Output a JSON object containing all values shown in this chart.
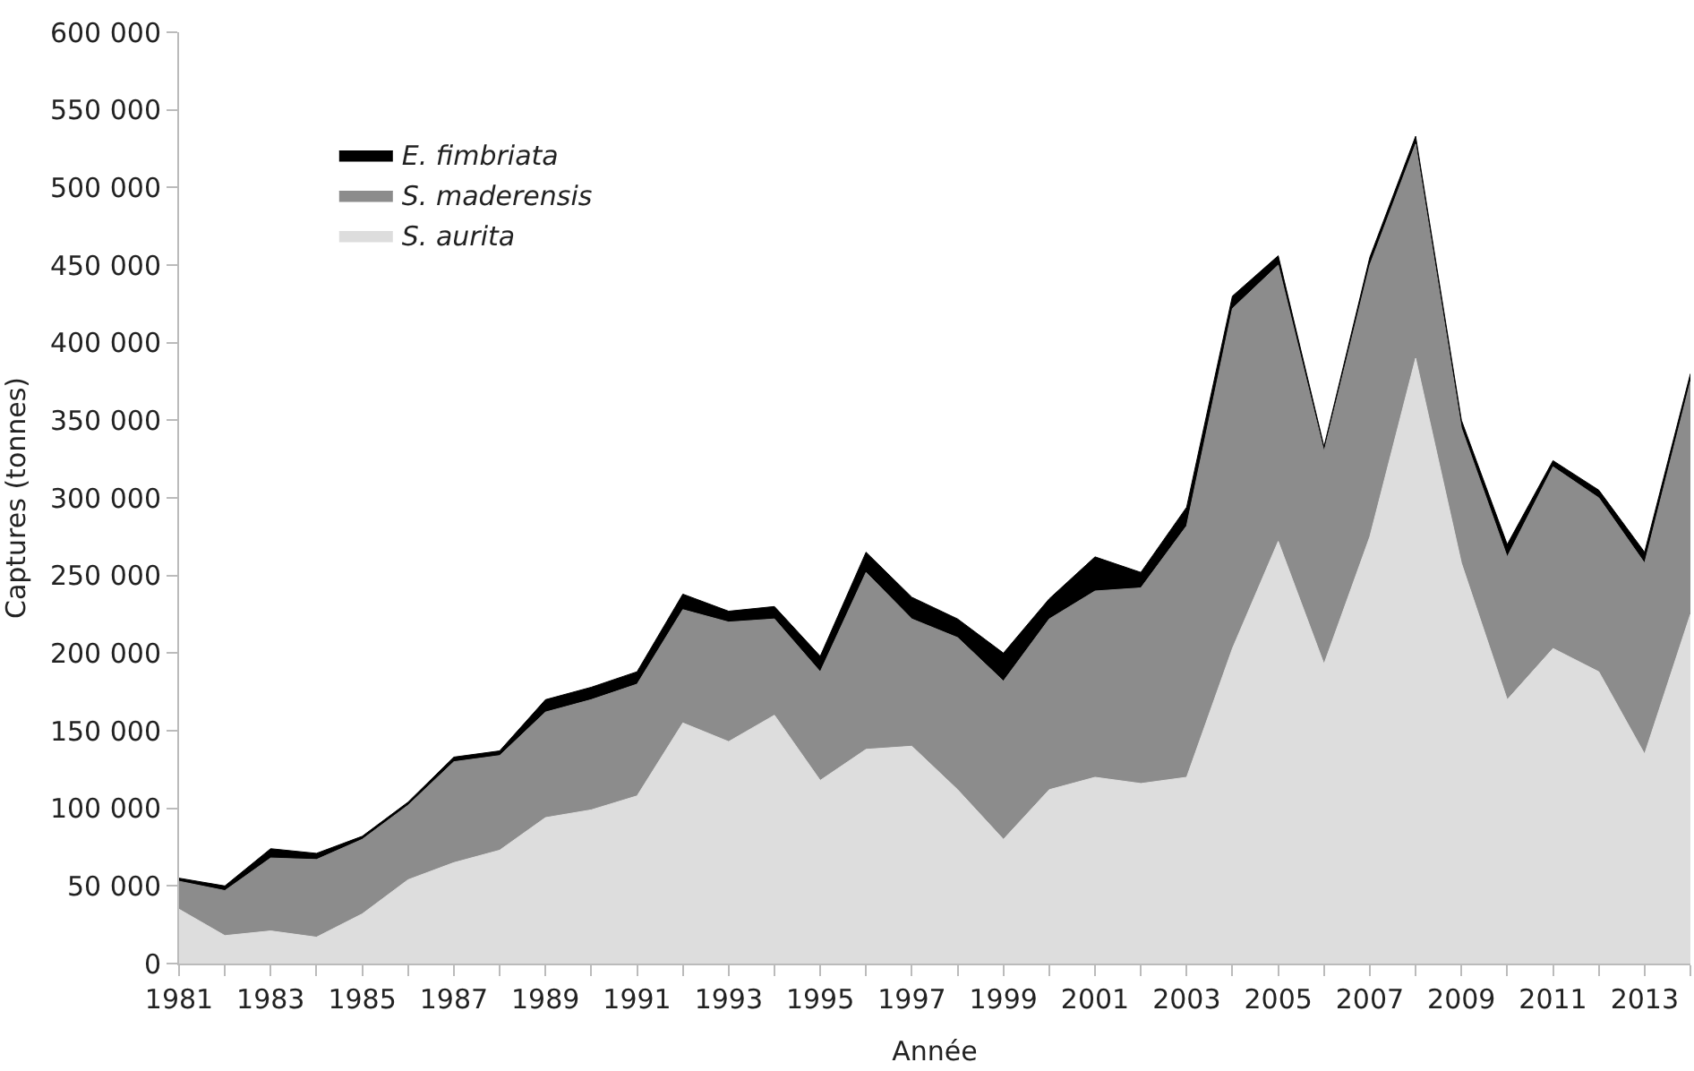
{
  "chart_data": {
    "type": "area",
    "stacked": true,
    "xlabel": "Année",
    "ylabel": "Captures (tonnes)",
    "x": [
      1981,
      1982,
      1983,
      1984,
      1985,
      1986,
      1987,
      1988,
      1989,
      1990,
      1991,
      1992,
      1993,
      1994,
      1995,
      1996,
      1997,
      1998,
      1999,
      2000,
      2001,
      2002,
      2003,
      2004,
      2005,
      2006,
      2007,
      2008,
      2009,
      2010,
      2011,
      2012,
      2013,
      2014
    ],
    "series": [
      {
        "name": "S. aurita",
        "color": "#dddddd",
        "values": [
          35000,
          18000,
          21000,
          17000,
          32000,
          54000,
          65000,
          73000,
          94000,
          99000,
          108000,
          155000,
          143000,
          160000,
          118000,
          138000,
          140000,
          112000,
          80000,
          112000,
          120000,
          116000,
          120000,
          203000,
          272000,
          193000,
          275000,
          390000,
          258000,
          170000,
          203000,
          188000,
          135000,
          225000
        ]
      },
      {
        "name": "S. maderensis",
        "color": "#8c8c8c",
        "values": [
          18000,
          29000,
          47000,
          50000,
          48000,
          48000,
          65000,
          61000,
          68000,
          71000,
          72000,
          73000,
          77000,
          62000,
          70000,
          114000,
          82000,
          98000,
          102000,
          110000,
          120000,
          126000,
          162000,
          219000,
          178000,
          137000,
          175000,
          138000,
          87000,
          92000,
          117000,
          112000,
          123000,
          150000
        ]
      },
      {
        "name": "E. fimbriata",
        "color": "#000000",
        "values": [
          2000,
          3000,
          6000,
          4000,
          2000,
          2000,
          3000,
          3000,
          8000,
          8000,
          8000,
          10000,
          7000,
          8000,
          10000,
          13000,
          14000,
          12000,
          18000,
          13000,
          22000,
          10000,
          12000,
          8000,
          6000,
          3000,
          5000,
          5000,
          5000,
          8000,
          4000,
          5000,
          7000,
          5000
        ]
      }
    ],
    "xlim": [
      1981,
      2014
    ],
    "xticks": [
      1981,
      1983,
      1985,
      1987,
      1989,
      1991,
      1993,
      1995,
      1997,
      1999,
      2001,
      2003,
      2005,
      2007,
      2009,
      2011,
      2013
    ],
    "ylim": [
      0,
      600000
    ],
    "yticks": [
      0,
      {
        "value": 50000,
        "label": "50 000"
      },
      {
        "value": 100000,
        "label": "100 000"
      },
      {
        "value": 150000,
        "label": "150 000"
      },
      {
        "value": 200000,
        "label": "200 000"
      },
      {
        "value": 250000,
        "label": "250 000"
      },
      {
        "value": 300000,
        "label": "300 000"
      },
      {
        "value": 350000,
        "label": "350 000"
      },
      {
        "value": 400000,
        "label": "400 000"
      },
      {
        "value": 450000,
        "label": "450 000"
      },
      {
        "value": 500000,
        "label": "500 000"
      },
      {
        "value": 550000,
        "label": "550 000"
      },
      {
        "value": 600000,
        "label": "600 000"
      }
    ],
    "legend": "top left"
  }
}
